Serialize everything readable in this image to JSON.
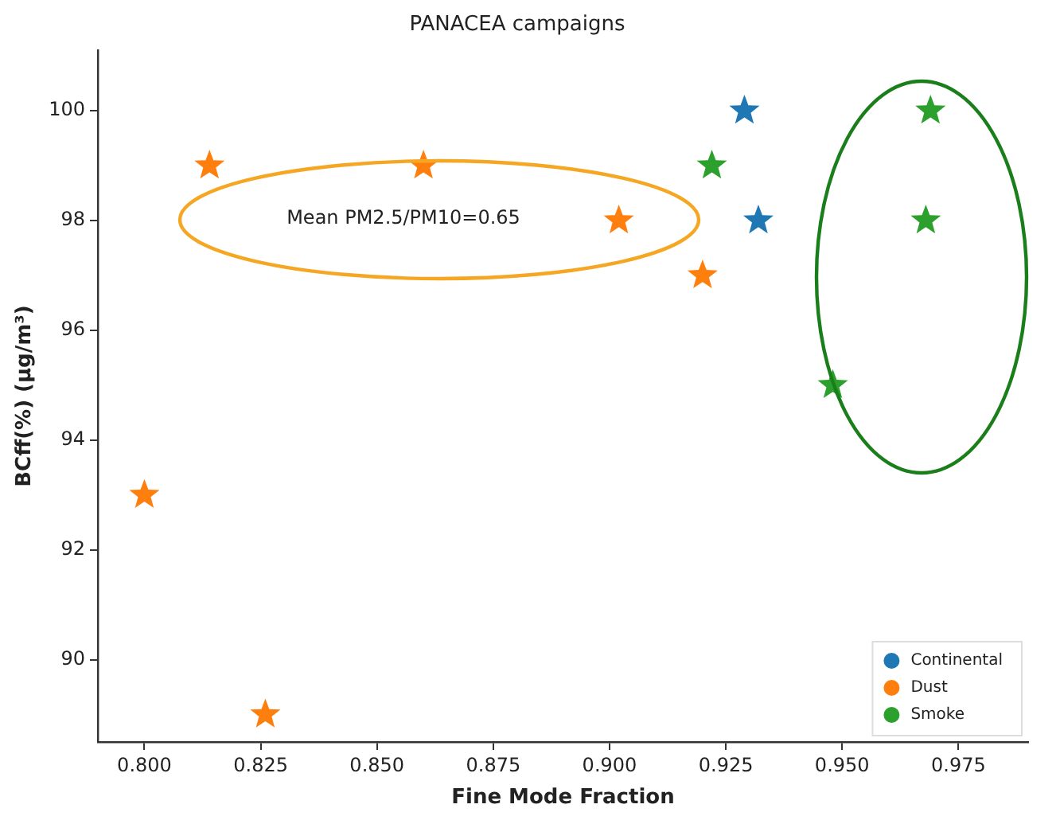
{
  "chart_data": {
    "type": "scatter",
    "title": "PANACEA campaigns",
    "xlabel": "Fine Mode Fraction",
    "ylabel": "BCff(%) (μg/m³)",
    "series": [
      {
        "name": "Continental",
        "color": "#1f77b4",
        "x": [
          0.929,
          0.932
        ],
        "values": [
          100,
          98
        ]
      },
      {
        "name": "Dust",
        "color": "#ff7f0e",
        "x": [
          0.8,
          0.814,
          0.86,
          0.902,
          0.92,
          0.826
        ],
        "values": [
          93,
          99,
          99,
          98,
          97,
          89
        ]
      },
      {
        "name": "Smoke",
        "color": "#2ca02c",
        "x": [
          0.922,
          0.948,
          0.969,
          0.968
        ],
        "values": [
          99,
          95,
          100,
          98
        ]
      }
    ],
    "xlim": [
      0.79,
      0.99
    ],
    "xticks": [
      {
        "value": 0.8,
        "label": "0.800"
      },
      {
        "value": 0.825,
        "label": "0.825"
      },
      {
        "value": 0.85,
        "label": "0.850"
      },
      {
        "value": 0.875,
        "label": "0.875"
      },
      {
        "value": 0.9,
        "label": "0.900"
      },
      {
        "value": 0.925,
        "label": "0.925"
      },
      {
        "value": 0.95,
        "label": "0.950"
      },
      {
        "value": 0.975,
        "label": "0.975"
      }
    ],
    "ylim": [
      88.5,
      101.1
    ],
    "yticks": [
      90,
      92,
      94,
      96,
      98,
      100
    ],
    "annotations": [
      "Mean PM2.5/PM10=0.65"
    ],
    "grid": false,
    "legend": "bottom right",
    "marker": "star"
  }
}
